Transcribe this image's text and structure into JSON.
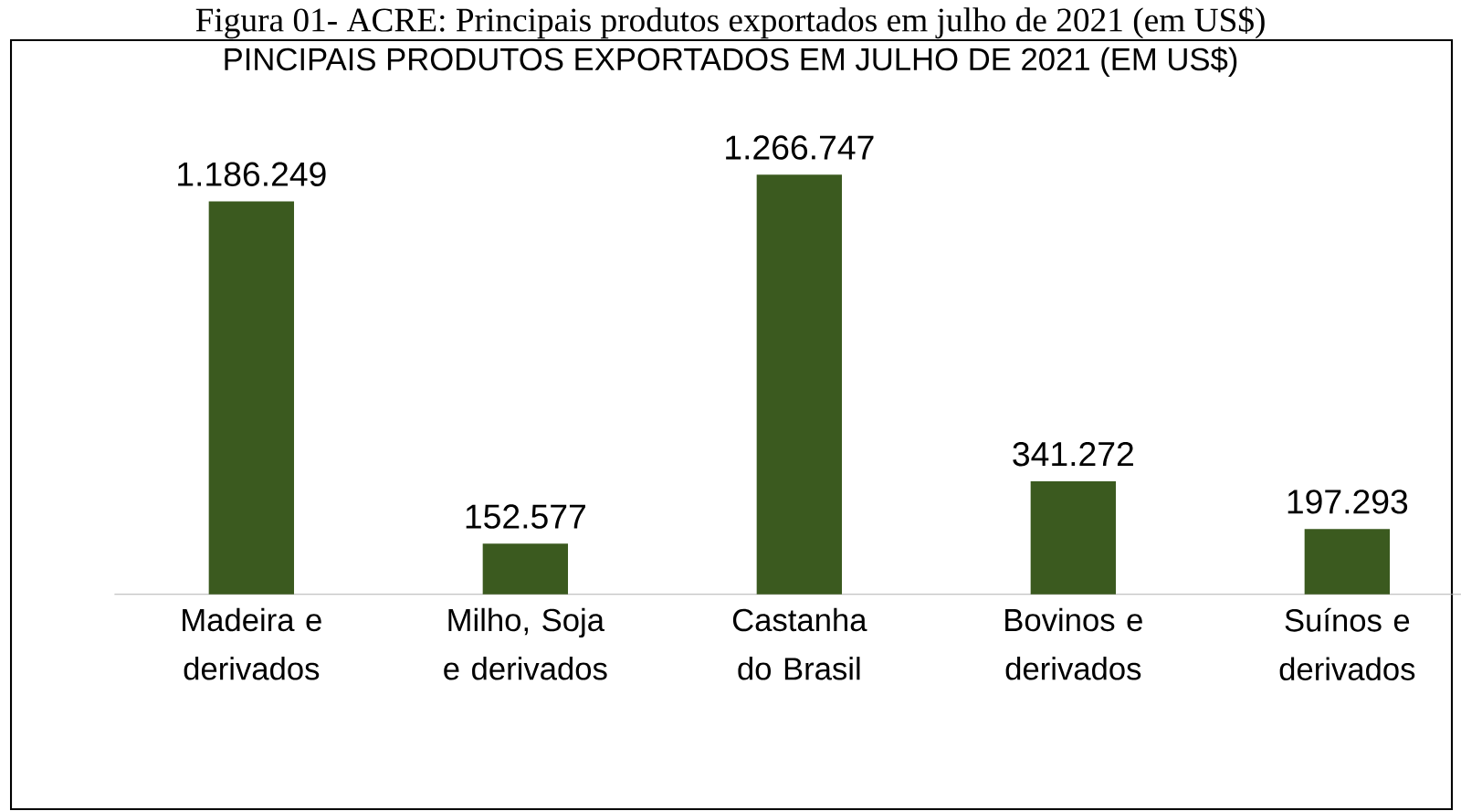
{
  "chart_data": {
    "type": "bar",
    "title": "PINCIPAIS PRODUTOS EXPORTADOS EM JULHO DE 2021 (EM US$)",
    "annotations": [
      "Figura 01- ACRE: Principais produtos exportados em julho de 2021 (em US$)"
    ],
    "categories": [
      "Madeira e derivados",
      "Milho, Soja e derivados",
      "Castanha do Brasil",
      "Bovinos e derivados",
      "Suínos e derivados"
    ],
    "values": [
      1186249,
      152577,
      1266747,
      341272,
      197293
    ],
    "value_labels": [
      "1.186.249",
      "152.577",
      "1.266.747",
      "341.272",
      "197.293"
    ],
    "color": "#3b5a1f"
  }
}
